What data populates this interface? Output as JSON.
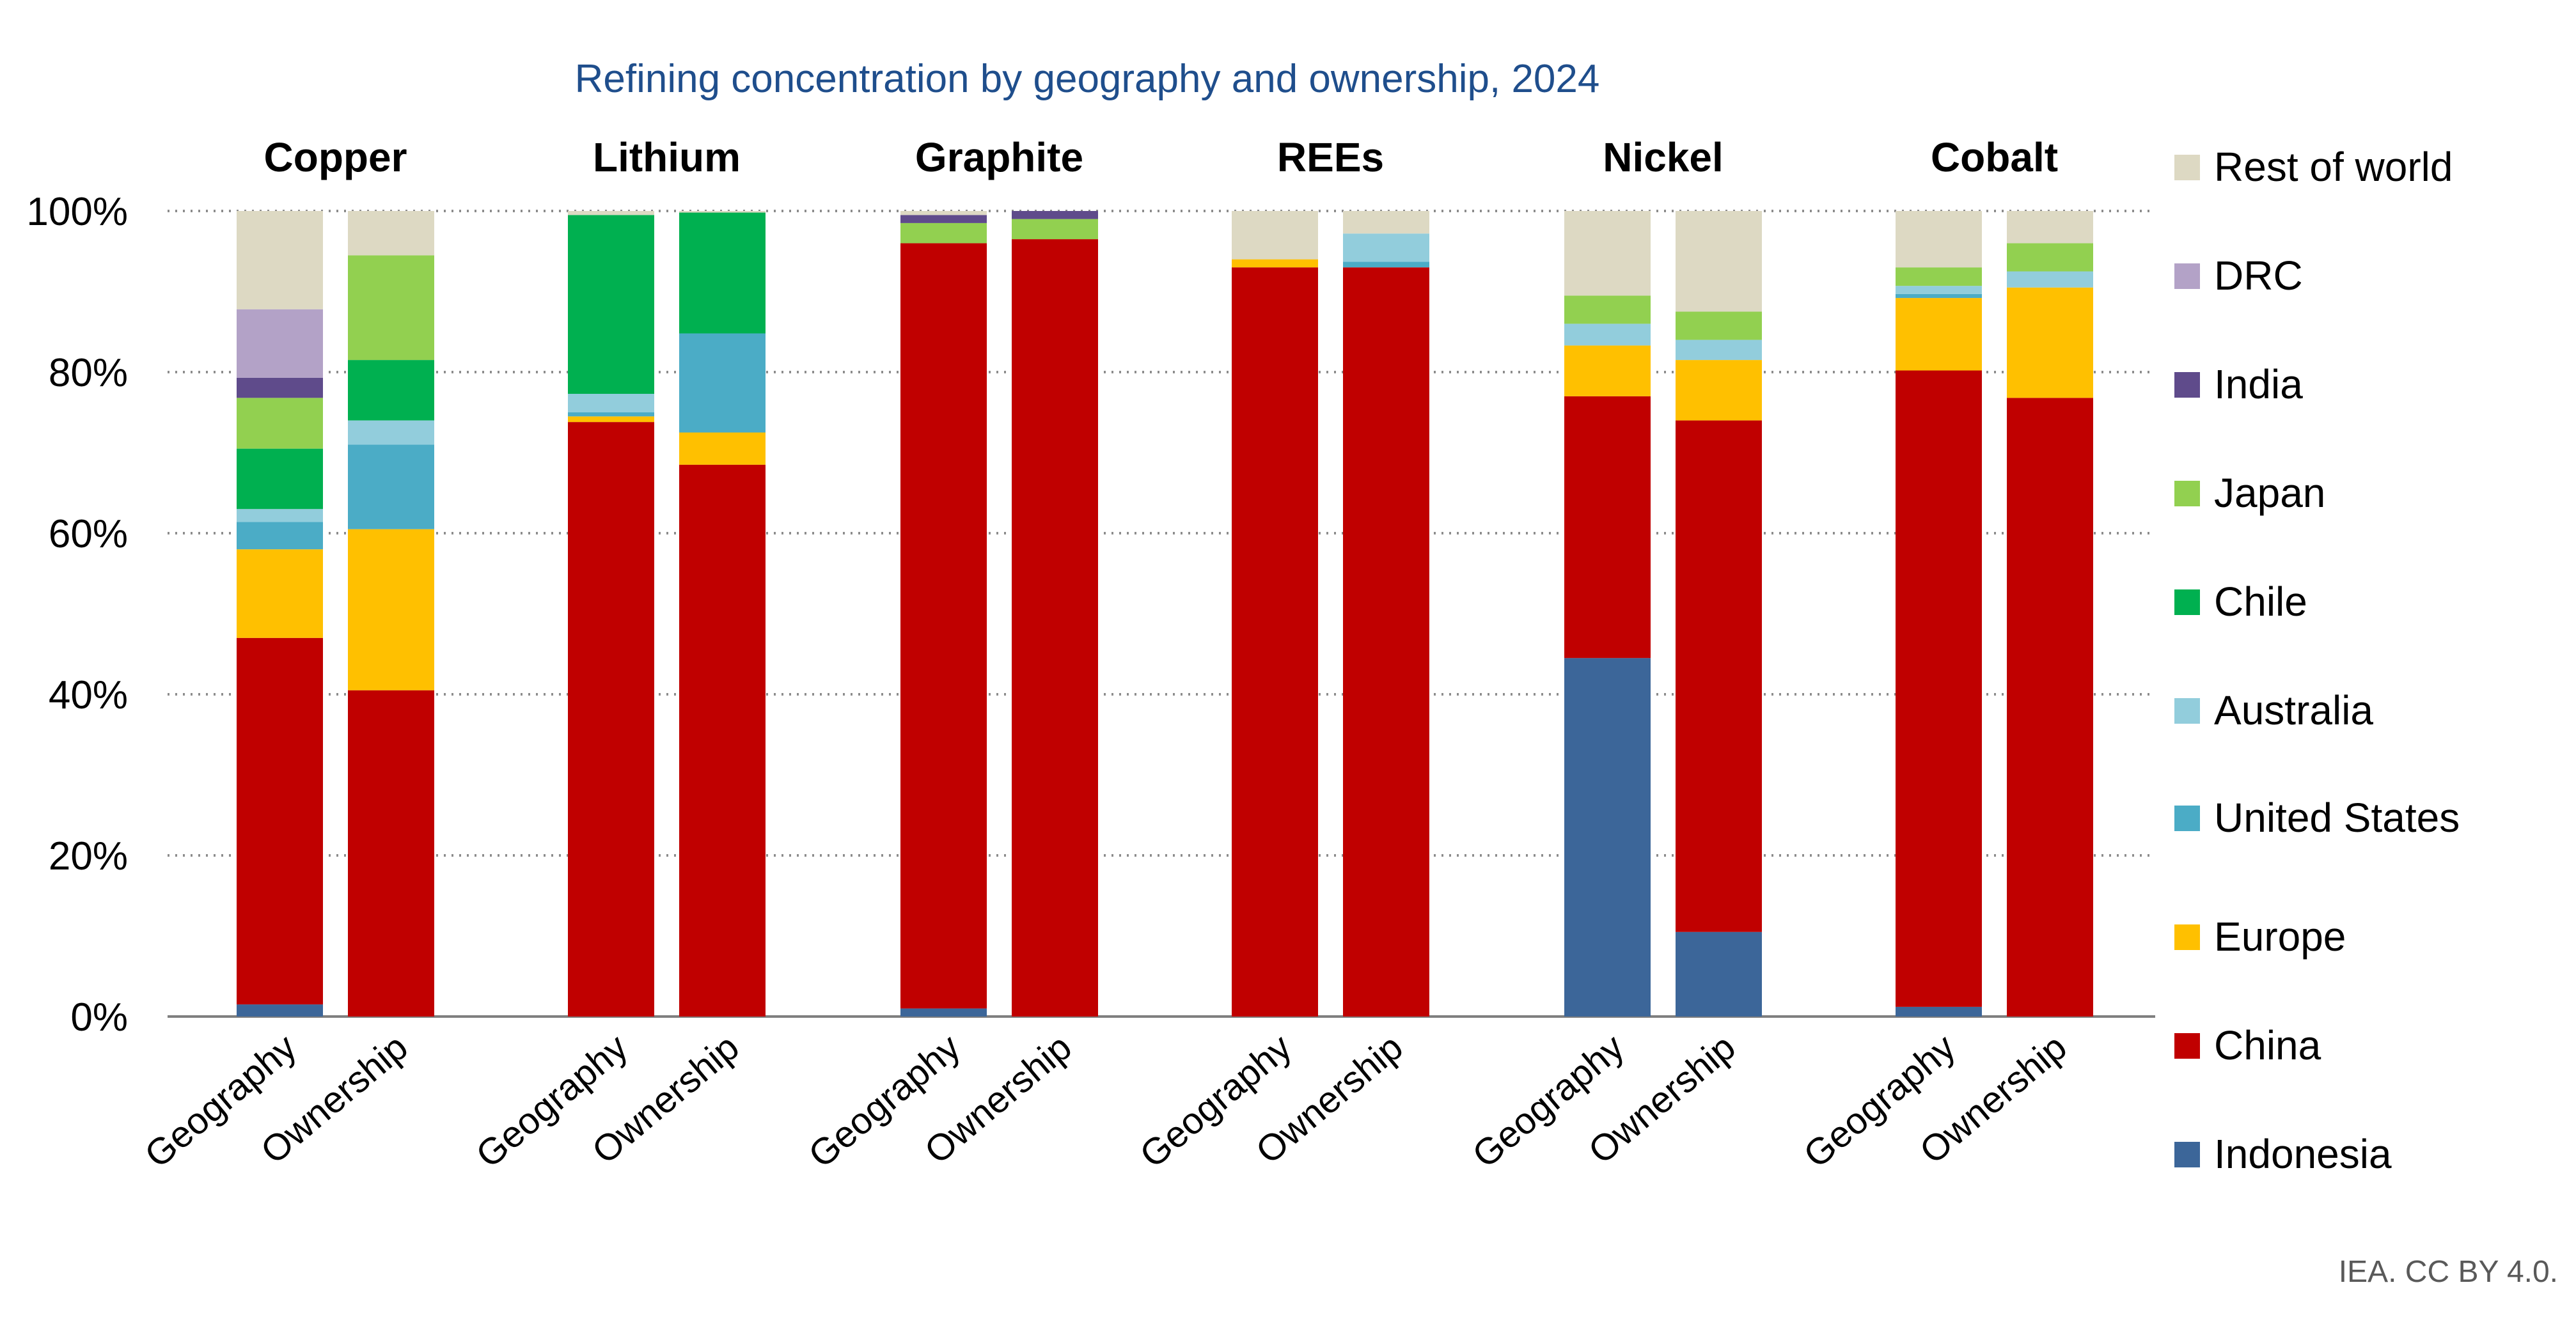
{
  "title": "Refining concentration by geography and ownership, 2024",
  "credit": "IEA. CC BY 4.0.",
  "colors": {
    "Indonesia": "#3c6699",
    "China": "#c00000",
    "Europe": "#ffc000",
    "United States": "#4bacc6",
    "Australia": "#92cddc",
    "Chile": "#00b050",
    "Japan": "#92d050",
    "India": "#5f4b8b",
    "DRC": "#b3a2c7",
    "Rest of world": "#ddd9c3"
  },
  "legend": [
    {
      "name": "Rest of world",
      "label": "Rest of world"
    },
    {
      "name": "DRC",
      "label": "DRC"
    },
    {
      "name": "India",
      "label": "India"
    },
    {
      "name": "Japan",
      "label": "Japan"
    },
    {
      "name": "Chile",
      "label": "Chile"
    },
    {
      "name": "Australia",
      "label": "Australia"
    },
    {
      "name": "United States",
      "label": "United States"
    },
    {
      "name": "Europe",
      "label": "Europe"
    },
    {
      "name": "China",
      "label": "China"
    },
    {
      "name": "Indonesia",
      "label": "Indonesia"
    }
  ],
  "chart_data": {
    "type": "bar",
    "stacked": true,
    "title": "Refining concentration by geography and ownership, 2024",
    "xlabel": "",
    "ylabel": "",
    "ylim": [
      0,
      100
    ],
    "y_ticks": [
      "0%",
      "20%",
      "40%",
      "60%",
      "80%",
      "100%"
    ],
    "groups": [
      "Copper",
      "Lithium",
      "Graphite",
      "REEs",
      "Nickel",
      "Cobalt"
    ],
    "categories": [
      "Geography",
      "Ownership"
    ],
    "series": [
      {
        "name": "Indonesia",
        "values": [
          [
            1.5,
            0
          ],
          [
            0,
            0
          ],
          [
            1,
            0
          ],
          [
            0,
            0
          ],
          [
            44.5,
            10.5
          ],
          [
            1.2,
            0
          ]
        ]
      },
      {
        "name": "China",
        "values": [
          [
            45.5,
            40.5
          ],
          [
            73.8,
            68.5
          ],
          [
            95,
            96.5
          ],
          [
            93,
            93
          ],
          [
            32.5,
            63.5
          ],
          [
            79,
            76.8
          ]
        ]
      },
      {
        "name": "Europe",
        "values": [
          [
            11,
            20
          ],
          [
            0.7,
            4
          ],
          [
            0,
            0
          ],
          [
            1,
            0
          ],
          [
            6.3,
            7.5
          ],
          [
            9,
            13.7
          ]
        ]
      },
      {
        "name": "United States",
        "values": [
          [
            3.4,
            10.5
          ],
          [
            0.5,
            12.3
          ],
          [
            0,
            0
          ],
          [
            0,
            0.7
          ],
          [
            0,
            0
          ],
          [
            0.5,
            0
          ]
        ]
      },
      {
        "name": "Australia",
        "values": [
          [
            1.6,
            3
          ],
          [
            2.3,
            0
          ],
          [
            0,
            0
          ],
          [
            0,
            3.5
          ],
          [
            2.7,
            2.5
          ],
          [
            1,
            2
          ]
        ]
      },
      {
        "name": "Chile",
        "values": [
          [
            7.5,
            7.5
          ],
          [
            22.2,
            15
          ],
          [
            0,
            0
          ],
          [
            0,
            0
          ],
          [
            0,
            0
          ],
          [
            0,
            0
          ]
        ]
      },
      {
        "name": "Japan",
        "values": [
          [
            6.3,
            13
          ],
          [
            0,
            0
          ],
          [
            2.5,
            2.5
          ],
          [
            0,
            0
          ],
          [
            3.5,
            3.5
          ],
          [
            2.3,
            3.5
          ]
        ]
      },
      {
        "name": "India",
        "values": [
          [
            2.5,
            0
          ],
          [
            0,
            0
          ],
          [
            1,
            1
          ],
          [
            0,
            0
          ],
          [
            0,
            0
          ],
          [
            0,
            0
          ]
        ]
      },
      {
        "name": "DRC",
        "values": [
          [
            8.5,
            0
          ],
          [
            0,
            0
          ],
          [
            0,
            0
          ],
          [
            0,
            0
          ],
          [
            0,
            0
          ],
          [
            0,
            0
          ]
        ]
      },
      {
        "name": "Rest of world",
        "values": [
          [
            12.2,
            5.5
          ],
          [
            0.5,
            0.2
          ],
          [
            0.5,
            0
          ],
          [
            6,
            2.8
          ],
          [
            10.5,
            12.5
          ],
          [
            7,
            4
          ]
        ]
      }
    ],
    "grid": true,
    "legend_position": "right"
  }
}
